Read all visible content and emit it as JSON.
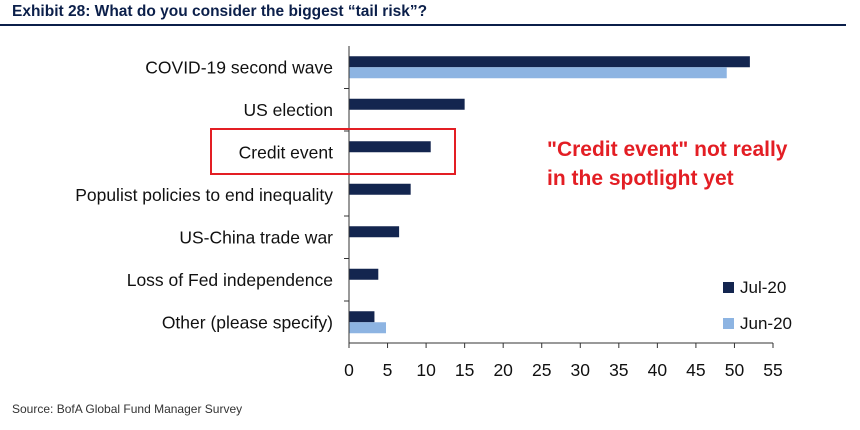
{
  "title": "Exhibit 28: What do you consider the biggest “tail risk”?",
  "source": "Source: BofA Global Fund Manager Survey",
  "annotation": {
    "line1": "\"Credit event\" not really",
    "line2": "in the spotlight yet",
    "color": "#e31e24"
  },
  "colors": {
    "jul": "#13254f",
    "jun": "#8db4e2",
    "title": "#0b1f4a"
  },
  "chart_data": {
    "type": "bar",
    "orientation": "horizontal",
    "title": "Exhibit 28: What do you consider the biggest “tail risk”?",
    "categories": [
      "COVID-19 second wave",
      "US election",
      "Credit event",
      "Populist policies to end inequality",
      "US-China trade war",
      "Loss of Fed independence",
      "Other (please specify)"
    ],
    "series": [
      {
        "name": "Jul-20",
        "values": [
          52,
          15,
          10.6,
          8,
          6.5,
          3.8,
          3.3
        ]
      },
      {
        "name": "Jun-20",
        "values": [
          49,
          null,
          null,
          null,
          null,
          null,
          4.8
        ]
      }
    ],
    "highlighted_category": "Credit event",
    "xlim": [
      0,
      55
    ],
    "xticks": [
      0,
      5,
      10,
      15,
      20,
      25,
      30,
      35,
      40,
      45,
      50,
      55
    ],
    "xlabel": "",
    "ylabel": "",
    "legend": "bottom-right",
    "grid": false
  }
}
